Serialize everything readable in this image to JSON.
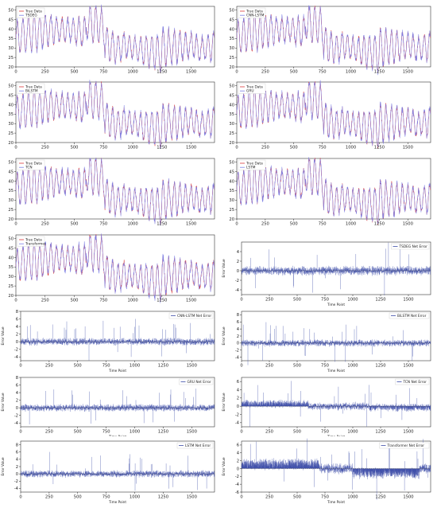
{
  "colors": {
    "true_data": "#d9383a",
    "prediction": "#7b7fe6",
    "error": "#3b4ba8",
    "zero_line": "#3a3a3a"
  },
  "chart_data": [
    {
      "type": "line",
      "panel": "A1",
      "ylim": [
        20,
        52
      ],
      "xlim": [
        0,
        1700
      ],
      "yticks": [
        20,
        25,
        30,
        35,
        40,
        45,
        50
      ],
      "xticks": [
        0,
        250,
        500,
        750,
        1000,
        1250,
        1500
      ],
      "legend_position": "top-left",
      "series": [
        {
          "name": "True Data",
          "color": "#d9383a"
        },
        {
          "name": "TSDEG",
          "color": "#7b7fe6"
        }
      ]
    },
    {
      "type": "line",
      "panel": "A2",
      "ylim": [
        20,
        52
      ],
      "xlim": [
        0,
        1700
      ],
      "yticks": [
        20,
        25,
        30,
        35,
        40,
        45,
        50
      ],
      "xticks": [
        0,
        250,
        500,
        750,
        1000,
        1250,
        1500
      ],
      "legend_position": "top-left",
      "series": [
        {
          "name": "True Data",
          "color": "#d9383a"
        },
        {
          "name": "CNN-LSTM",
          "color": "#7b7fe6"
        }
      ]
    },
    {
      "type": "line",
      "panel": "B1",
      "ylim": [
        20,
        52
      ],
      "xlim": [
        0,
        1700
      ],
      "yticks": [
        20,
        25,
        30,
        35,
        40,
        45,
        50
      ],
      "xticks": [
        0,
        250,
        500,
        750,
        1000,
        1250,
        1500
      ],
      "legend_position": "top-left",
      "series": [
        {
          "name": "True Data",
          "color": "#d9383a"
        },
        {
          "name": "BiLSTM",
          "color": "#7b7fe6"
        }
      ]
    },
    {
      "type": "line",
      "panel": "B2",
      "ylim": [
        20,
        52
      ],
      "xlim": [
        0,
        1700
      ],
      "yticks": [
        20,
        25,
        30,
        35,
        40,
        45,
        50
      ],
      "xticks": [
        0,
        250,
        500,
        750,
        1000,
        1250,
        1500
      ],
      "legend_position": "top-left",
      "series": [
        {
          "name": "True Data",
          "color": "#d9383a"
        },
        {
          "name": "GRU",
          "color": "#7b7fe6"
        }
      ]
    },
    {
      "type": "line",
      "panel": "C1",
      "ylim": [
        20,
        52
      ],
      "xlim": [
        0,
        1700
      ],
      "yticks": [
        20,
        25,
        30,
        35,
        40,
        45,
        50
      ],
      "xticks": [
        0,
        250,
        500,
        750,
        1000,
        1250,
        1500
      ],
      "legend_position": "top-left",
      "series": [
        {
          "name": "True Data",
          "color": "#d9383a"
        },
        {
          "name": "TCN",
          "color": "#7b7fe6"
        }
      ]
    },
    {
      "type": "line",
      "panel": "C2",
      "ylim": [
        20,
        52
      ],
      "xlim": [
        0,
        1700
      ],
      "yticks": [
        20,
        25,
        30,
        35,
        40,
        45,
        50
      ],
      "xticks": [
        0,
        250,
        500,
        750,
        1000,
        1250,
        1500
      ],
      "legend_position": "top-left",
      "series": [
        {
          "name": "True Data",
          "color": "#d9383a"
        },
        {
          "name": "LSTM",
          "color": "#7b7fe6"
        }
      ]
    },
    {
      "type": "line",
      "panel": "D1",
      "ylim": [
        20,
        52
      ],
      "xlim": [
        0,
        1700
      ],
      "yticks": [
        20,
        25,
        30,
        35,
        40,
        45,
        50
      ],
      "xticks": [
        0,
        250,
        500,
        750,
        1000,
        1250,
        1500
      ],
      "legend_position": "top-left",
      "series": [
        {
          "name": "True Data",
          "color": "#d9383a"
        },
        {
          "name": "Transformer",
          "color": "#7b7fe6"
        }
      ]
    },
    {
      "type": "bar",
      "panel": "D2",
      "ylim": [
        -5,
        6
      ],
      "xlim": [
        0,
        1700
      ],
      "yticks": [
        -4,
        -2,
        0,
        2,
        4
      ],
      "xticks": [
        0,
        250,
        500,
        750,
        1000,
        1250,
        1500
      ],
      "xlabel": "Time Point",
      "ylabel": "Error Value",
      "legend_position": "top-right",
      "series": [
        {
          "name": "TSDEG Net Error",
          "color": "#3b4ba8"
        }
      ]
    },
    {
      "type": "bar",
      "panel": "E1",
      "ylim": [
        -5,
        8
      ],
      "xlim": [
        0,
        1700
      ],
      "yticks": [
        -4,
        -2,
        0,
        2,
        4,
        6,
        8
      ],
      "xticks": [
        0,
        250,
        500,
        750,
        1000,
        1250,
        1500
      ],
      "xlabel": "Time Point",
      "ylabel": "Error Value",
      "legend_position": "top-right",
      "series": [
        {
          "name": "CNN-LSTM Net Error",
          "color": "#3b4ba8"
        }
      ]
    },
    {
      "type": "bar",
      "panel": "E2",
      "ylim": [
        -5,
        9
      ],
      "xlim": [
        0,
        1700
      ],
      "yticks": [
        -4,
        -2,
        0,
        2,
        4,
        6,
        8
      ],
      "xticks": [
        0,
        250,
        500,
        750,
        1000,
        1250,
        1500
      ],
      "xlabel": "Time Point",
      "ylabel": "Error Value",
      "legend_position": "top-right",
      "series": [
        {
          "name": "BiLSTM Net Error",
          "color": "#3b4ba8"
        }
      ]
    },
    {
      "type": "bar",
      "panel": "F1",
      "ylim": [
        -5,
        8
      ],
      "xlim": [
        0,
        1700
      ],
      "yticks": [
        -4,
        -2,
        0,
        2,
        4,
        6,
        8
      ],
      "xticks": [
        0,
        250,
        500,
        750,
        1000,
        1250,
        1500
      ],
      "xlabel": "Time Point",
      "ylabel": "Error Value",
      "legend_position": "top-right",
      "series": [
        {
          "name": "GRU Net Error",
          "color": "#3b4ba8"
        }
      ]
    },
    {
      "type": "bar",
      "panel": "F2",
      "ylim": [
        -5,
        7
      ],
      "xlim": [
        0,
        1700
      ],
      "yticks": [
        -4,
        -2,
        0,
        2,
        4,
        6
      ],
      "xticks": [
        0,
        250,
        500,
        750,
        1000,
        1250,
        1500
      ],
      "xlabel": "Time Point",
      "ylabel": "Error Value",
      "legend_position": "top-right",
      "series": [
        {
          "name": "TCN Net Error",
          "color": "#3b4ba8"
        }
      ]
    },
    {
      "type": "bar",
      "panel": "G1",
      "ylim": [
        -5,
        9
      ],
      "xlim": [
        0,
        1700
      ],
      "yticks": [
        -4,
        -2,
        0,
        2,
        4,
        6,
        8
      ],
      "xticks": [
        0,
        250,
        500,
        750,
        1000,
        1250,
        1500
      ],
      "xlabel": "Time Point",
      "ylabel": "Error Value",
      "legend_position": "top-right",
      "series": [
        {
          "name": "LSTM Net Error",
          "color": "#3b4ba8"
        }
      ]
    },
    {
      "type": "bar",
      "panel": "G2",
      "ylim": [
        -6,
        7
      ],
      "xlim": [
        0,
        1700
      ],
      "yticks": [
        -6,
        -4,
        -2,
        0,
        2,
        4,
        6
      ],
      "xticks": [
        0,
        250,
        500,
        750,
        1000,
        1250,
        1500
      ],
      "xlabel": "Time Point",
      "ylabel": "Error Value",
      "legend_position": "top-right",
      "series": [
        {
          "name": "Transformer Net Error",
          "color": "#3b4ba8"
        }
      ]
    }
  ]
}
